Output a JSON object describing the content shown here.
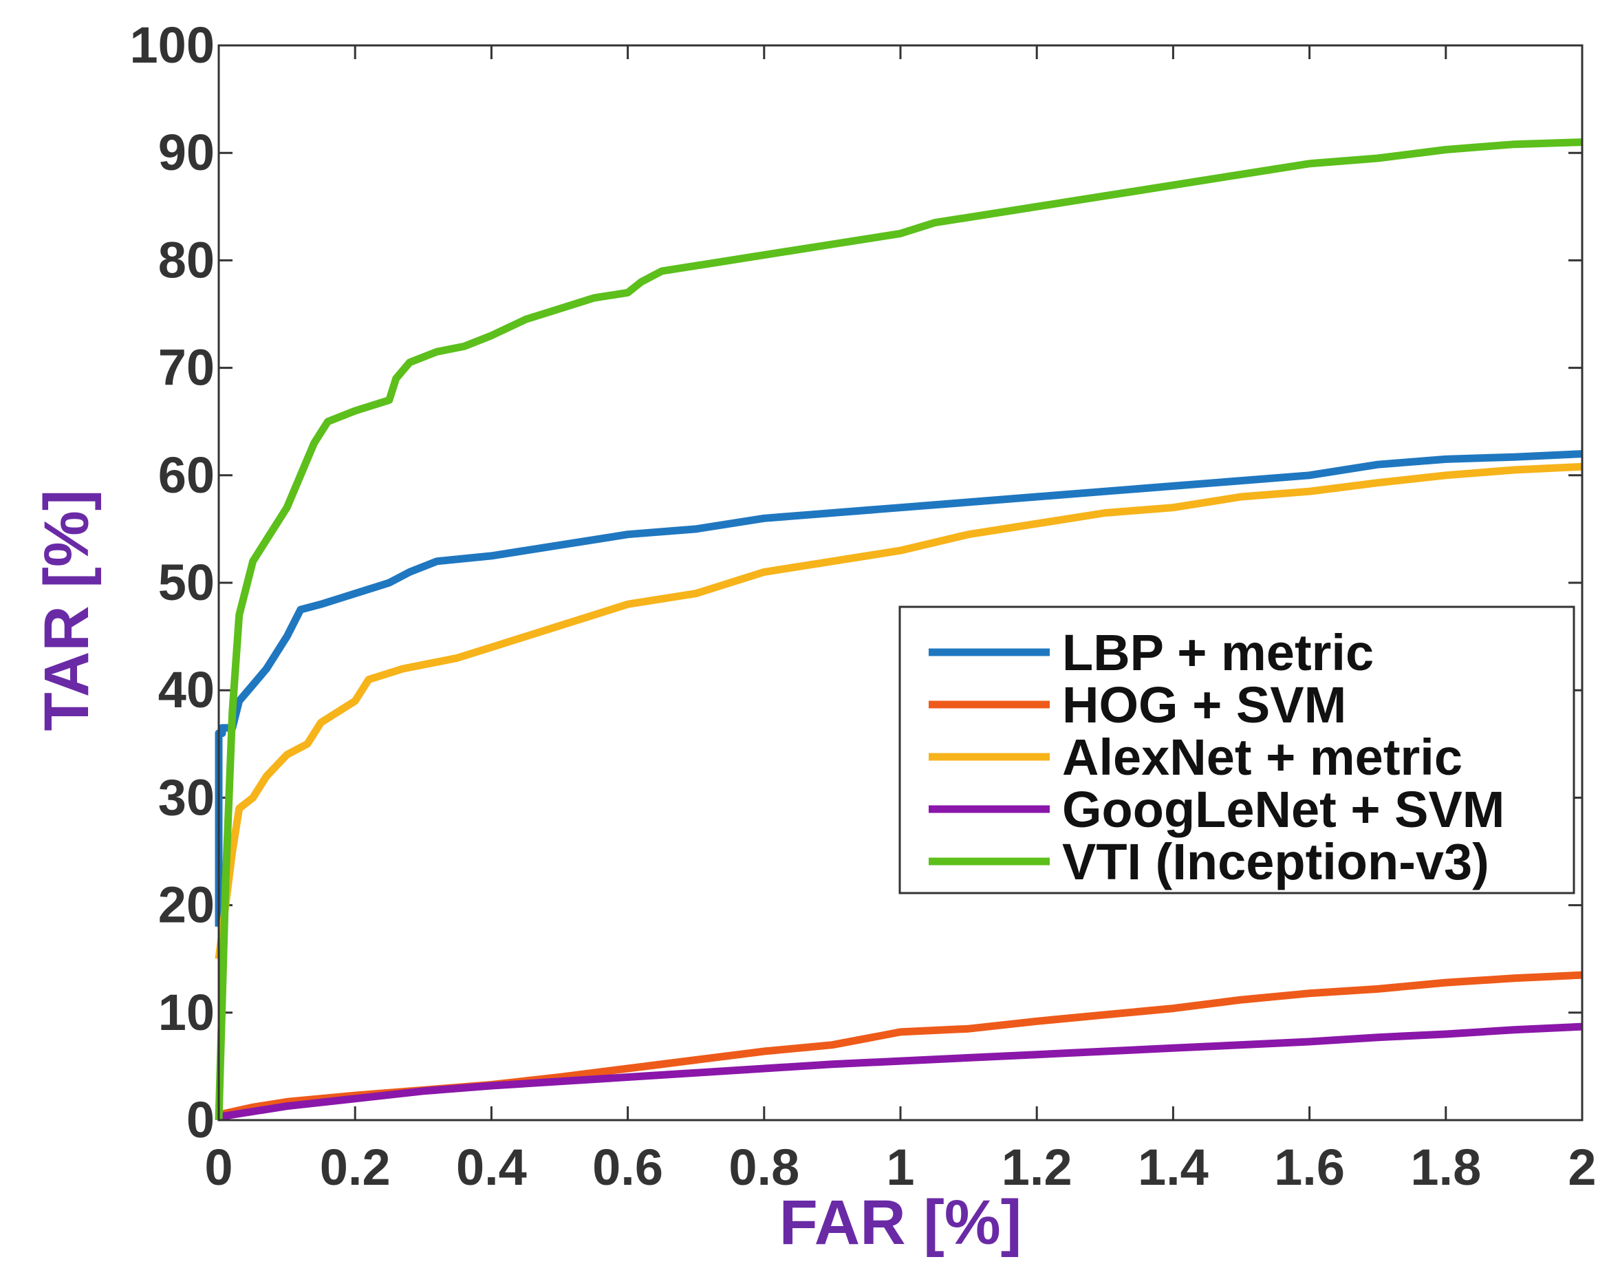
{
  "chart_data": {
    "type": "line",
    "title": "",
    "xlabel": "FAR [%]",
    "ylabel": "TAR [%]",
    "xlim": [
      0,
      2
    ],
    "ylim": [
      0,
      100
    ],
    "xticks": [
      0,
      0.2,
      0.4,
      0.6,
      0.8,
      1,
      1.2,
      1.4,
      1.6,
      1.8,
      2
    ],
    "xtick_labels": [
      "0",
      "0.2",
      "0.4",
      "0.6",
      "0.8",
      "1",
      "1.2",
      "1.4",
      "1.6",
      "1.8",
      "2"
    ],
    "yticks": [
      0,
      10,
      20,
      30,
      40,
      50,
      60,
      70,
      80,
      90,
      100
    ],
    "ytick_labels": [
      "0",
      "10",
      "20",
      "30",
      "40",
      "50",
      "60",
      "70",
      "80",
      "90",
      "100"
    ],
    "grid": false,
    "legend_position": "center-right",
    "label_color": "#6a2aa6",
    "series": [
      {
        "name": "LBP + metric",
        "color": "#1f77c0",
        "x": [
          0,
          0,
          0.005,
          0.005,
          0.02,
          0.03,
          0.05,
          0.07,
          0.09,
          0.1,
          0.12,
          0.15,
          0.2,
          0.25,
          0.28,
          0.32,
          0.4,
          0.5,
          0.6,
          0.7,
          0.8,
          0.9,
          1.0,
          1.1,
          1.2,
          1.3,
          1.4,
          1.5,
          1.6,
          1.7,
          1.8,
          1.9,
          2.0
        ],
        "y": [
          18,
          36,
          36,
          36.5,
          36.5,
          39,
          40.5,
          42,
          44,
          45,
          47.5,
          48,
          49,
          50,
          51,
          52,
          52.5,
          53.5,
          54.5,
          55,
          56,
          56.5,
          57,
          57.5,
          58,
          58.5,
          59,
          59.5,
          60,
          61,
          61.5,
          61.7,
          62
        ]
      },
      {
        "name": "HOG + SVM",
        "color": "#ee5a1a",
        "x": [
          0,
          0.05,
          0.1,
          0.2,
          0.3,
          0.4,
          0.5,
          0.6,
          0.7,
          0.8,
          0.9,
          0.95,
          1.0,
          1.1,
          1.2,
          1.3,
          1.4,
          1.5,
          1.6,
          1.7,
          1.8,
          1.9,
          2.0
        ],
        "y": [
          0.5,
          1.2,
          1.7,
          2.3,
          2.8,
          3.3,
          4,
          4.8,
          5.6,
          6.4,
          7,
          7.6,
          8.2,
          8.5,
          9.2,
          9.8,
          10.4,
          11.2,
          11.8,
          12.2,
          12.8,
          13.2,
          13.5
        ]
      },
      {
        "name": "AlexNet + metric",
        "color": "#f6b31a",
        "x": [
          0,
          0.01,
          0.02,
          0.03,
          0.05,
          0.07,
          0.1,
          0.13,
          0.15,
          0.2,
          0.22,
          0.27,
          0.35,
          0.4,
          0.5,
          0.55,
          0.6,
          0.7,
          0.8,
          0.9,
          1.0,
          1.1,
          1.2,
          1.3,
          1.4,
          1.5,
          1.6,
          1.7,
          1.8,
          1.9,
          2.0
        ],
        "y": [
          15,
          20,
          25,
          29,
          30,
          32,
          34,
          35,
          37,
          39,
          41,
          42,
          43,
          44,
          46,
          47,
          48,
          49,
          51,
          52,
          53,
          54.5,
          55.5,
          56.5,
          57,
          58,
          58.5,
          59.3,
          60,
          60.5,
          60.8
        ]
      },
      {
        "name": "GoogLeNet + SVM",
        "color": "#8a17a9",
        "x": [
          0,
          0.05,
          0.1,
          0.2,
          0.3,
          0.4,
          0.5,
          0.6,
          0.7,
          0.8,
          0.9,
          1.0,
          1.2,
          1.4,
          1.6,
          1.7,
          1.8,
          1.9,
          2.0
        ],
        "y": [
          0.3,
          0.8,
          1.3,
          2,
          2.7,
          3.2,
          3.6,
          4,
          4.4,
          4.8,
          5.2,
          5.5,
          6.1,
          6.7,
          7.3,
          7.7,
          8,
          8.4,
          8.7
        ]
      },
      {
        "name": "VTI (Inception-v3)",
        "color": "#5cbf1b",
        "x": [
          0,
          0.01,
          0.02,
          0.03,
          0.05,
          0.07,
          0.1,
          0.12,
          0.14,
          0.16,
          0.2,
          0.25,
          0.26,
          0.28,
          0.32,
          0.36,
          0.4,
          0.45,
          0.5,
          0.55,
          0.6,
          0.62,
          0.65,
          0.7,
          0.8,
          0.85,
          0.9,
          1.0,
          1.05,
          1.1,
          1.2,
          1.3,
          1.4,
          1.5,
          1.6,
          1.7,
          1.8,
          1.9,
          2.0
        ],
        "y": [
          0,
          22,
          38,
          47,
          52,
          54,
          57,
          60,
          63,
          65,
          66,
          67,
          69,
          70.5,
          71.5,
          72,
          73,
          74.5,
          75.5,
          76.5,
          77,
          78,
          79,
          79.5,
          80.5,
          81,
          81.5,
          82.5,
          83.5,
          84,
          85,
          86,
          87,
          88,
          89,
          89.5,
          90.3,
          90.8,
          91
        ]
      }
    ]
  }
}
